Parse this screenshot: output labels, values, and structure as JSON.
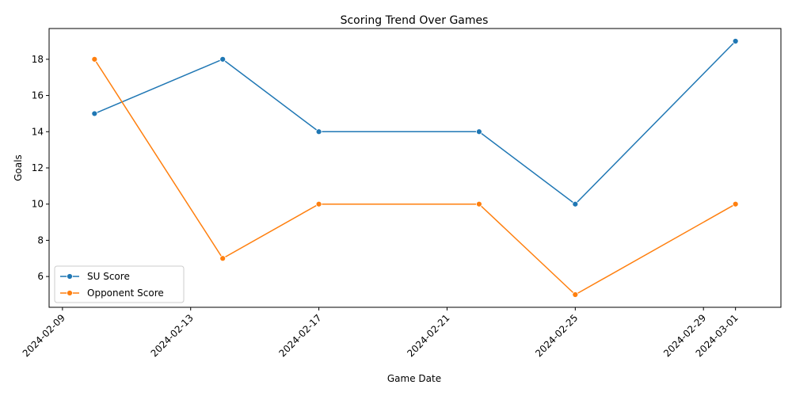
{
  "chart_data": {
    "type": "line",
    "title": "Scoring Trend Over Games",
    "xlabel": "Game Date",
    "ylabel": "Goals",
    "x": [
      "2024-02-10",
      "2024-02-14",
      "2024-02-17",
      "2024-02-22",
      "2024-02-25",
      "2024-03-01"
    ],
    "series": [
      {
        "name": "SU Score",
        "values": [
          15,
          18,
          14,
          14,
          10,
          19
        ],
        "color": "#1f77b4",
        "marker": "circle"
      },
      {
        "name": "Opponent Score",
        "values": [
          18,
          7,
          10,
          10,
          5,
          10
        ],
        "color": "#ff7f0e",
        "marker": "circle"
      }
    ],
    "x_ticks": [
      "2024-02-09",
      "2024-02-13",
      "2024-02-17",
      "2024-02-21",
      "2024-02-25",
      "2024-02-29",
      "2024-03-01"
    ],
    "y_ticks": [
      6,
      8,
      10,
      12,
      14,
      16,
      18
    ],
    "xlim": [
      "2024-02-08T14:00",
      "2024-03-02T10:00"
    ],
    "ylim": [
      4.3,
      19.7
    ],
    "x_tick_rotation": 45,
    "grid": false,
    "legend_position": "lower-left"
  }
}
